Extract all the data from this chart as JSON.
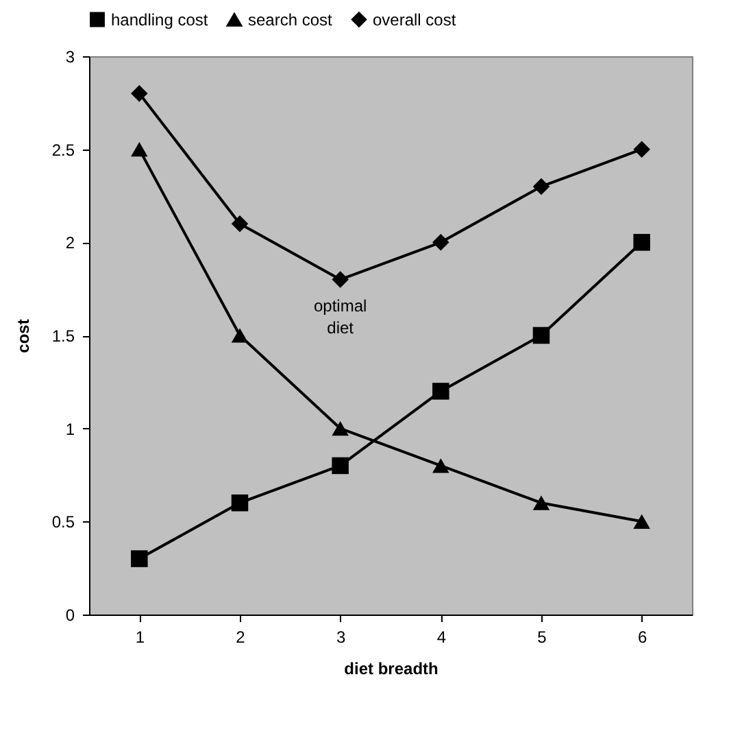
{
  "chart_data": {
    "type": "line",
    "xlabel": "diet breadth",
    "ylabel": "cost",
    "categories": [
      "1",
      "2",
      "3",
      "4",
      "5",
      "6"
    ],
    "series": [
      {
        "name": "handling cost",
        "color": "#000000",
        "marker": "square",
        "values": [
          0.3,
          0.6,
          0.8,
          1.2,
          1.5,
          2.0
        ]
      },
      {
        "name": "search cost",
        "color": "#000000",
        "marker": "triangle",
        "values": [
          2.5,
          1.5,
          1.0,
          0.8,
          0.6,
          0.5
        ]
      },
      {
        "name": "overall cost",
        "color": "#000000",
        "marker": "diamond",
        "values": [
          2.8,
          2.1,
          1.8,
          2.0,
          2.3,
          2.5
        ]
      }
    ],
    "ylim": [
      0,
      3
    ],
    "yticks": [
      0,
      0.5,
      1,
      1.5,
      2,
      2.5,
      3
    ],
    "annotations": [
      {
        "text": "optimal diet",
        "x": "3",
        "y": 1.8
      }
    ],
    "grid": false,
    "legend": "top"
  }
}
